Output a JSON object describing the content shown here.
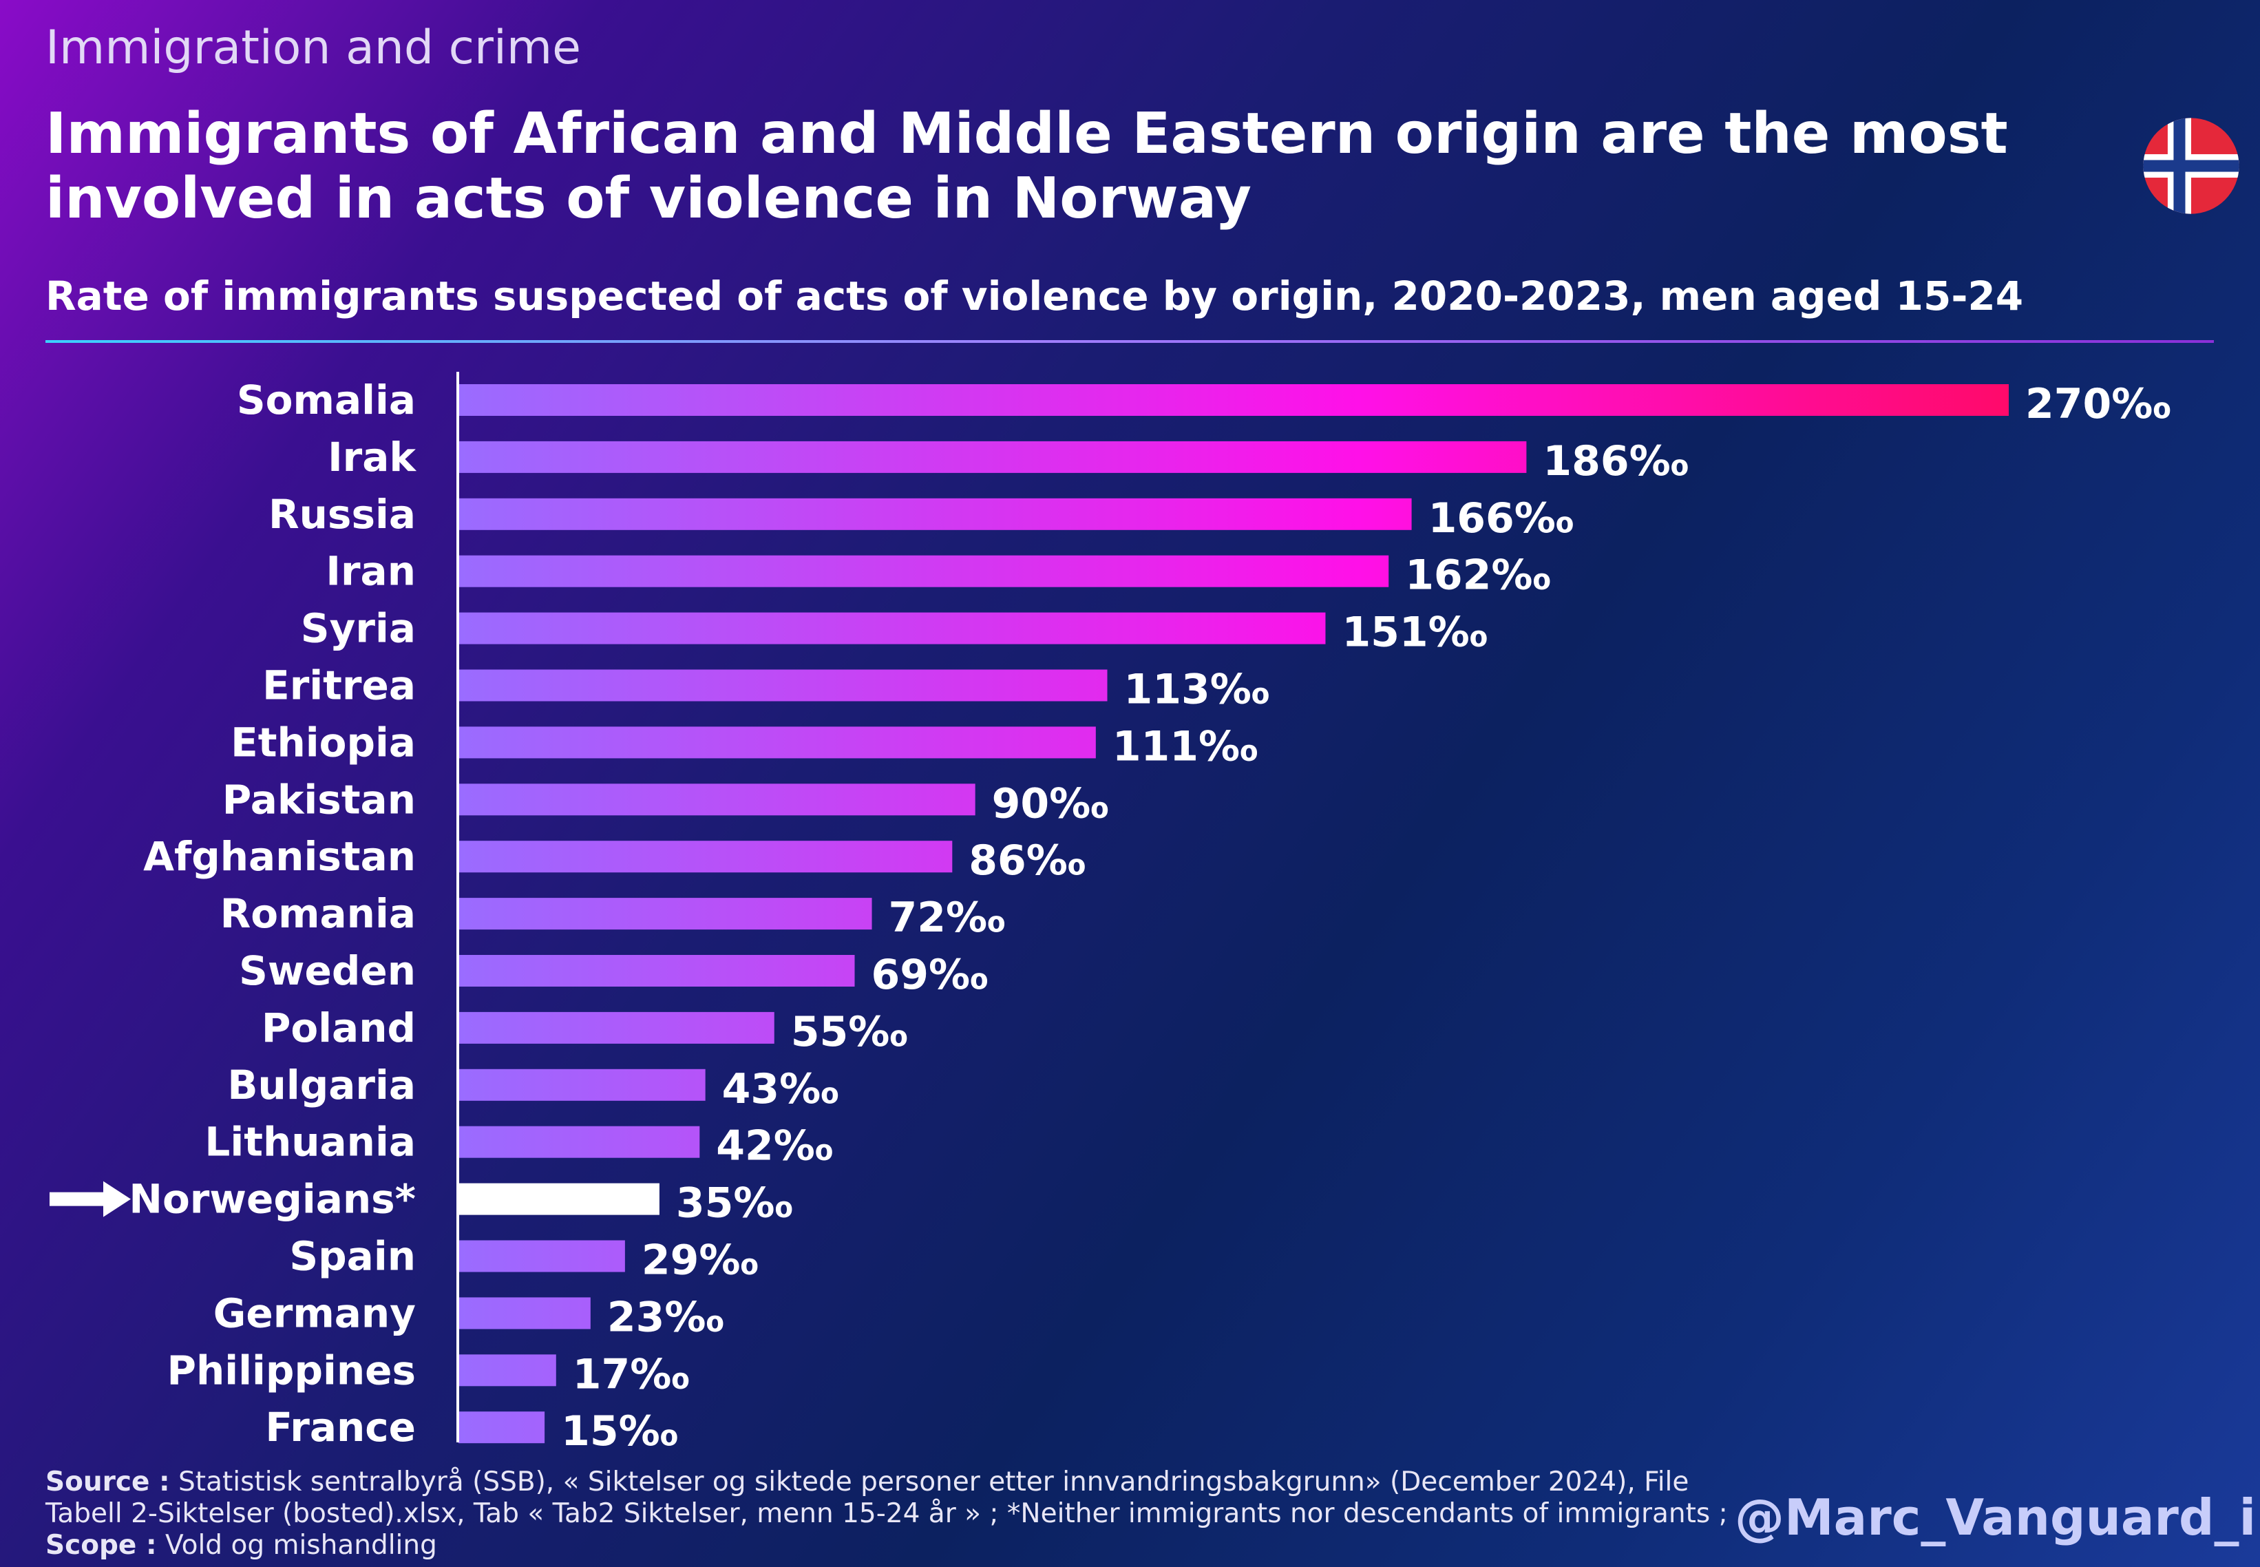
{
  "header": {
    "kicker": "Immigration and crime",
    "title": "Immigrants of African and Middle Eastern origin are the most involved in acts of violence in Norway",
    "subtitle": "Rate of immigrants suspected of acts of violence by origin, 2020-2023, men aged 15-24"
  },
  "flag_icon": "norway-flag-icon",
  "chart_data": {
    "type": "bar",
    "orientation": "horizontal",
    "title": "Rate of immigrants suspected of acts of violence by origin, 2020-2023, men aged 15-24",
    "unit": "‰",
    "categories": [
      "Somalia",
      "Irak",
      "Russia",
      "Iran",
      "Syria",
      "Eritrea",
      "Ethiopia",
      "Pakistan",
      "Afghanistan",
      "Romania",
      "Sweden",
      "Poland",
      "Bulgaria",
      "Lithuania",
      "Norwegians*",
      "Spain",
      "Germany",
      "Philippines",
      "France"
    ],
    "values": [
      270,
      186,
      166,
      162,
      151,
      113,
      111,
      90,
      86,
      72,
      69,
      55,
      43,
      42,
      35,
      29,
      23,
      17,
      15
    ],
    "value_labels": [
      "270‰",
      "186‰",
      "166‰",
      "162‰",
      "151‰",
      "113‰",
      "111‰",
      "90‰",
      "86‰",
      "72‰",
      "69‰",
      "55‰",
      "43‰",
      "42‰",
      "35‰",
      "29‰",
      "23‰",
      "17‰",
      "15‰"
    ],
    "highlight_category": "Norwegians*",
    "xlim": [
      0,
      270
    ],
    "grid": false,
    "legend": "none",
    "colors": {
      "gradient_low": "#9a6cff",
      "gradient_mid": "#ff10e8",
      "gradient_high": "#ff0a6a",
      "highlight": "#ffffff"
    }
  },
  "footer": {
    "source_label": "Source :",
    "source_text": "Statistisk sentralbyrå (SSB), « Siktelser og siktede personer etter innvandringsbakgrunn»  (December 2024), File Tabell 2-Siktelser (bosted).xlsx, Tab « Tab2 Siktelser, menn 15-24 år »  ; *Neither immigrants nor descendants of immigrants ;",
    "scope_label": "Scope :",
    "scope_text": "Vold og mishandling",
    "handle": "@Marc_Vanguard_i"
  }
}
